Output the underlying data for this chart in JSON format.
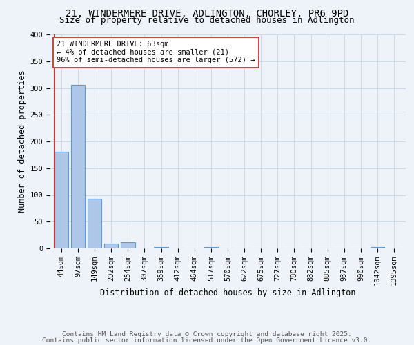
{
  "title_line1": "21, WINDERMERE DRIVE, ADLINGTON, CHORLEY, PR6 9PD",
  "title_line2": "Size of property relative to detached houses in Adlington",
  "xlabel": "Distribution of detached houses by size in Adlington",
  "ylabel": "Number of detached properties",
  "bar_labels": [
    "44sqm",
    "97sqm",
    "149sqm",
    "202sqm",
    "254sqm",
    "307sqm",
    "359sqm",
    "412sqm",
    "464sqm",
    "517sqm",
    "570sqm",
    "622sqm",
    "675sqm",
    "727sqm",
    "780sqm",
    "832sqm",
    "885sqm",
    "937sqm",
    "990sqm",
    "1042sqm",
    "1095sqm"
  ],
  "bar_values": [
    181,
    306,
    93,
    9,
    11,
    0,
    3,
    0,
    0,
    3,
    0,
    0,
    0,
    0,
    0,
    0,
    0,
    0,
    0,
    3,
    0
  ],
  "bar_color": "#aec6e8",
  "bar_edge_color": "#5b9bd5",
  "background_color": "#eef3f9",
  "vline_color": "#c0392b",
  "annotation_text": "21 WINDERMERE DRIVE: 63sqm\n← 4% of detached houses are smaller (21)\n96% of semi-detached houses are larger (572) →",
  "annotation_box_color": "#ffffff",
  "annotation_box_edge": "#c0392b",
  "footnote1": "Contains HM Land Registry data © Crown copyright and database right 2025.",
  "footnote2": "Contains public sector information licensed under the Open Government Licence v3.0.",
  "ylim": [
    0,
    400
  ],
  "yticks": [
    0,
    50,
    100,
    150,
    200,
    250,
    300,
    350,
    400
  ],
  "grid_color": "#c8d4e3",
  "title_fontsize": 10,
  "subtitle_fontsize": 9,
  "axis_label_fontsize": 8.5,
  "tick_fontsize": 7.5,
  "annotation_fontsize": 7.5,
  "footnote_fontsize": 6.8
}
